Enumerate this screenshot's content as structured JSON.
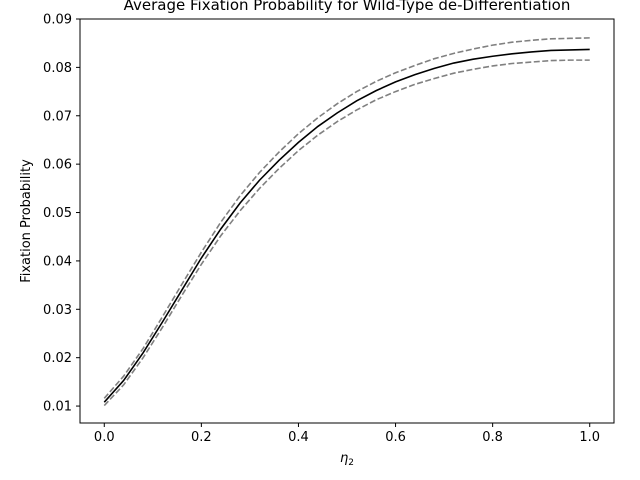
{
  "chart_data": {
    "type": "line",
    "title": "Average Fixation Probability for Wild-Type de-Differentiation",
    "xlabel_main": "η",
    "xlabel_sub": "2",
    "ylabel": "Fixation Probability",
    "xlim": [
      -0.05,
      1.05
    ],
    "ylim": [
      0.0065,
      0.09
    ],
    "xticks": [
      0.0,
      0.2,
      0.4,
      0.6,
      0.8,
      1.0
    ],
    "xtick_labels": [
      "0.0",
      "0.2",
      "0.4",
      "0.6",
      "0.8",
      "1.0"
    ],
    "yticks": [
      0.01,
      0.02,
      0.03,
      0.04,
      0.05,
      0.06,
      0.07,
      0.08,
      0.09
    ],
    "ytick_labels": [
      "0.01",
      "0.02",
      "0.03",
      "0.04",
      "0.05",
      "0.06",
      "0.07",
      "0.08",
      "0.09"
    ],
    "grid": false,
    "legend": "none",
    "x": [
      0.0,
      0.04,
      0.08,
      0.12,
      0.16,
      0.2,
      0.24,
      0.28,
      0.32,
      0.36,
      0.4,
      0.44,
      0.48,
      0.52,
      0.56,
      0.6,
      0.64,
      0.68,
      0.72,
      0.76,
      0.8,
      0.84,
      0.88,
      0.92,
      0.96,
      1.0
    ],
    "series": [
      {
        "style": "solid",
        "color": "#000000",
        "values": [
          0.0108,
          0.0153,
          0.021,
          0.0274,
          0.034,
          0.0406,
          0.0466,
          0.052,
          0.0567,
          0.0608,
          0.0645,
          0.0678,
          0.0706,
          0.0731,
          0.0752,
          0.077,
          0.0785,
          0.0798,
          0.0809,
          0.0817,
          0.0823,
          0.0828,
          0.0832,
          0.0835,
          0.0836,
          0.0837
        ]
      },
      {
        "style": "dashed",
        "color": "#808080",
        "values": [
          0.0116,
          0.0162,
          0.0219,
          0.0285,
          0.0352,
          0.0418,
          0.048,
          0.0535,
          0.0583,
          0.0625,
          0.0663,
          0.0696,
          0.0725,
          0.075,
          0.0771,
          0.0789,
          0.0804,
          0.0818,
          0.0829,
          0.0838,
          0.0846,
          0.0852,
          0.0856,
          0.0859,
          0.086,
          0.0861
        ]
      },
      {
        "style": "dashed",
        "color": "#808080",
        "values": [
          0.0101,
          0.0144,
          0.02,
          0.0263,
          0.0329,
          0.0393,
          0.0452,
          0.0504,
          0.055,
          0.0591,
          0.0628,
          0.066,
          0.0688,
          0.0712,
          0.0733,
          0.075,
          0.0765,
          0.0777,
          0.0788,
          0.0796,
          0.0803,
          0.0808,
          0.0811,
          0.0814,
          0.0815,
          0.0815
        ]
      }
    ]
  }
}
